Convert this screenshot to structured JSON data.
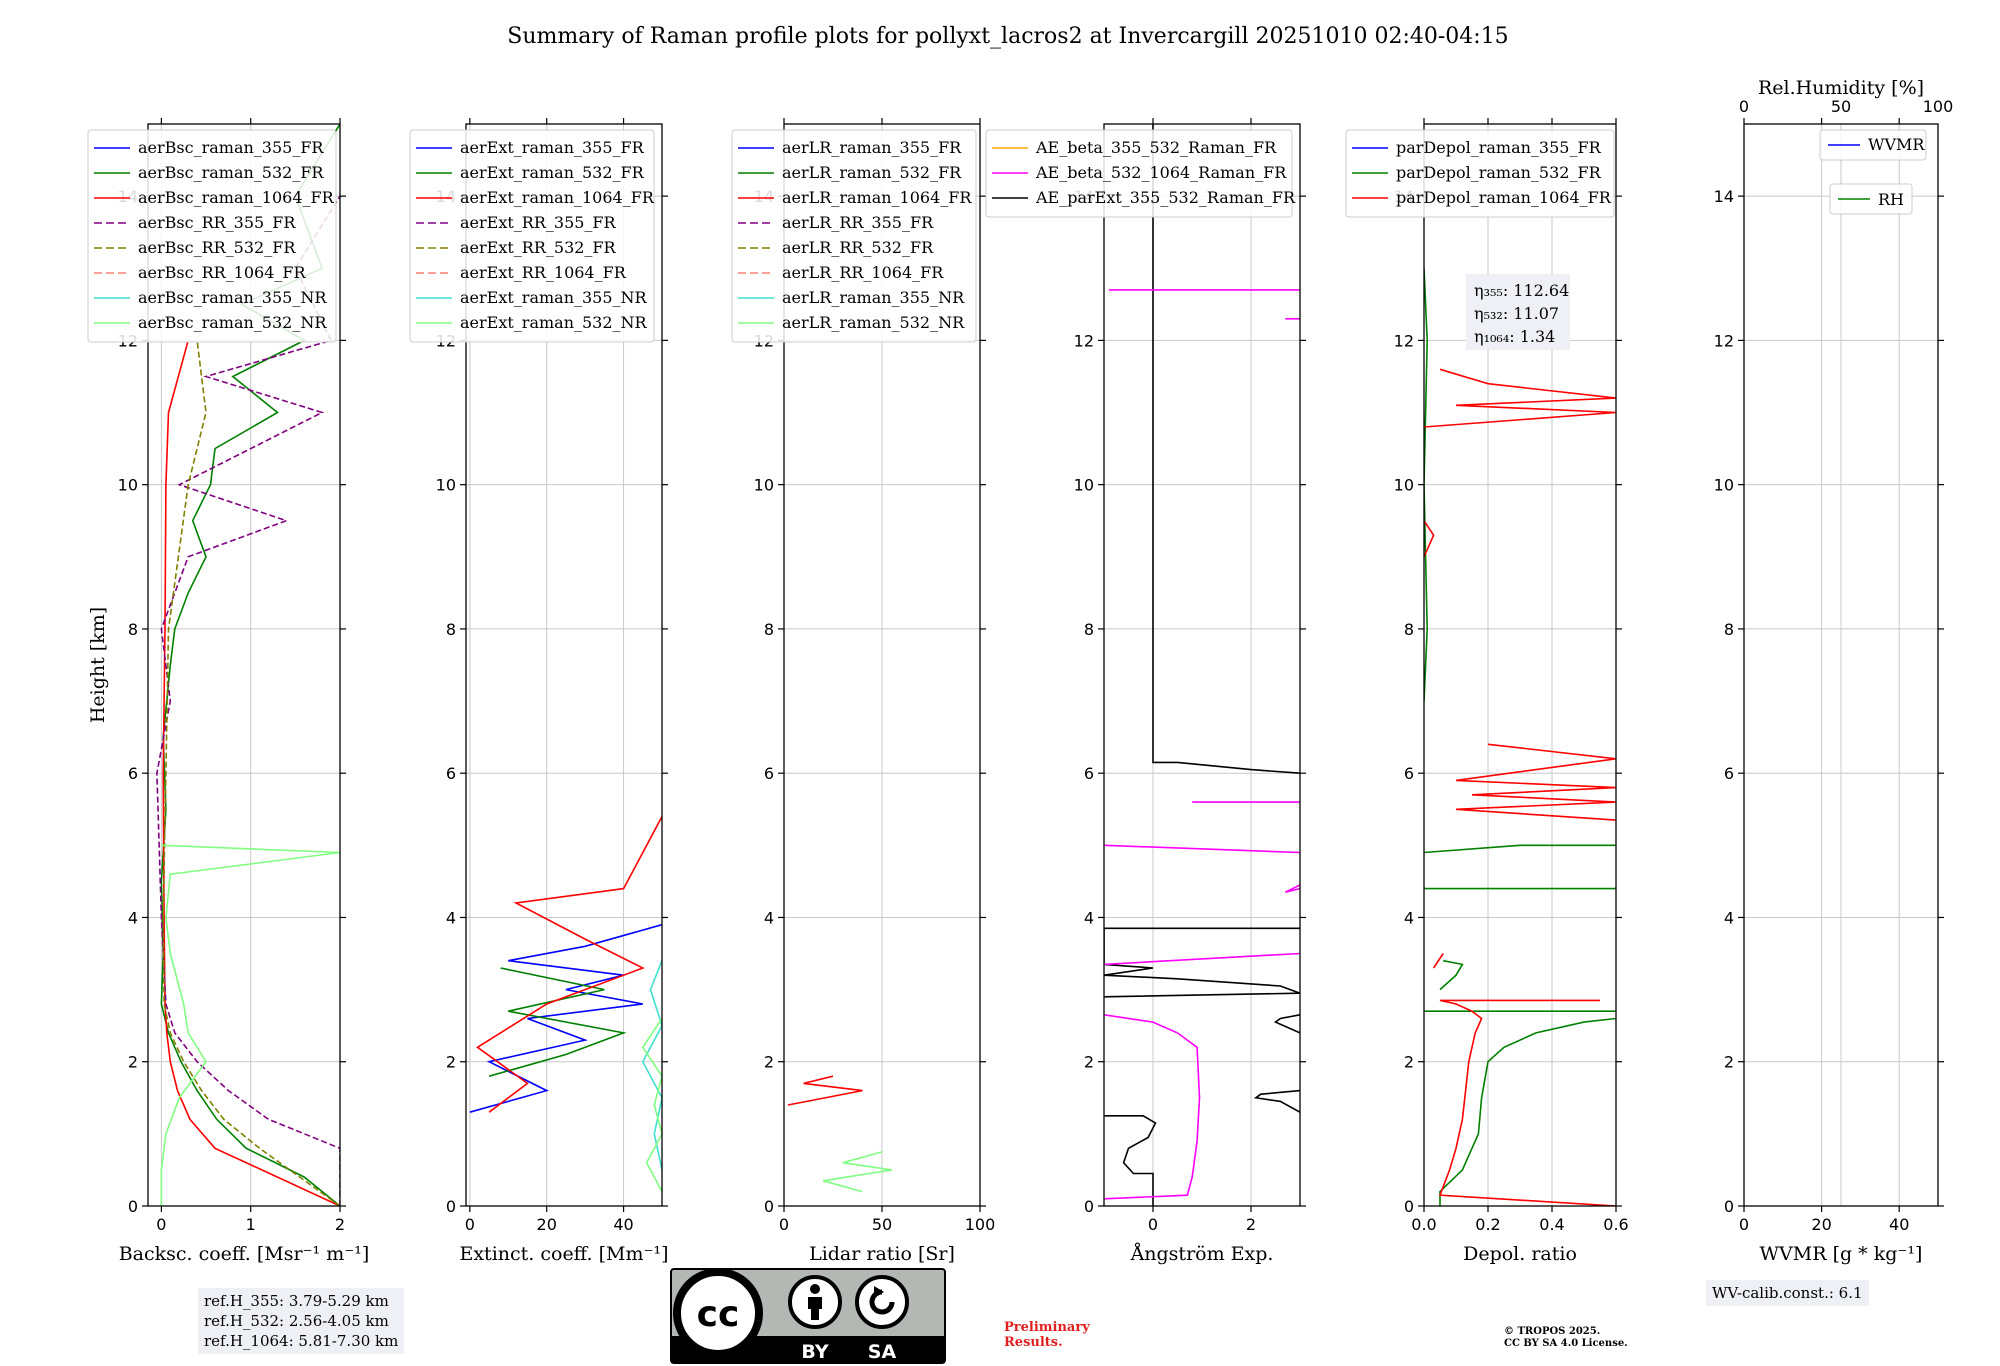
{
  "title": "Summary of Raman profile plots for pollyxt_lacros2 at Invercargill 20251010 02:40-04:15",
  "ylabel": "Height [km]",
  "chart_data": [
    {
      "type": "line",
      "name": "backscatter",
      "xlabel": "Backsc. coeff. [Msr⁻¹ m⁻¹]",
      "xlim": [
        -0.15,
        2
      ],
      "ylim": [
        0,
        15
      ],
      "xticks": [
        0,
        1,
        2
      ],
      "xtick_labels": [
        "0",
        "1",
        "2"
      ],
      "yticks": [
        0,
        2,
        4,
        6,
        8,
        10,
        12,
        14
      ],
      "legend": [
        "aerBsc_raman_355_FR",
        "aerBsc_raman_532_FR",
        "aerBsc_raman_1064_FR",
        "aerBsc_RR_355_FR",
        "aerBsc_RR_532_FR",
        "aerBsc_RR_1064_FR",
        "aerBsc_raman_355_NR",
        "aerBsc_raman_532_NR"
      ],
      "series": [
        {
          "name": "aerBsc_raman_532_FR",
          "color": "#008000",
          "style": "solid",
          "y": [
            0,
            0.4,
            0.8,
            1.2,
            1.6,
            2.0,
            2.4,
            2.8,
            3.5,
            4.5,
            5.5,
            6.5,
            7.5,
            8.0,
            8.5,
            9.0,
            9.5,
            10.0,
            10.5,
            11.0,
            11.5,
            12.0,
            12.5,
            13.0,
            14.0,
            15.0
          ],
          "x": [
            2.0,
            1.6,
            0.95,
            0.62,
            0.4,
            0.22,
            0.08,
            0.0,
            0.02,
            0.0,
            0.05,
            0.02,
            0.1,
            0.15,
            0.3,
            0.5,
            0.35,
            0.55,
            0.6,
            1.3,
            0.8,
            1.6,
            0.9,
            1.8,
            1.5,
            2.0
          ]
        },
        {
          "name": "aerBsc_raman_1064_FR",
          "color": "#ff0000",
          "style": "solid",
          "y": [
            0,
            0.4,
            0.8,
            1.2,
            1.6,
            2.0,
            2.4,
            2.8,
            4.0,
            6.0,
            8.0,
            10.0,
            11.0,
            12.0
          ],
          "x": [
            2.0,
            1.3,
            0.6,
            0.32,
            0.18,
            0.1,
            0.06,
            0.04,
            0.03,
            0.02,
            0.04,
            0.05,
            0.08,
            0.3
          ]
        },
        {
          "name": "aerBsc_RR_355_FR",
          "color": "#800080",
          "style": "dashed",
          "y": [
            0,
            0.8,
            1.2,
            1.6,
            2.0,
            2.4,
            2.8,
            4.0,
            6.0,
            7.0,
            8.0,
            9.0,
            9.5,
            10.0,
            11.0,
            11.5,
            12.0,
            13.0,
            14.0
          ],
          "x": [
            2.0,
            2.0,
            1.2,
            0.75,
            0.4,
            0.15,
            0.05,
            0.0,
            -0.05,
            0.1,
            0.0,
            0.3,
            1.4,
            0.2,
            1.8,
            0.5,
            1.9,
            1.5,
            2.0
          ]
        },
        {
          "name": "aerBsc_RR_532_FR",
          "color": "#808000",
          "style": "dashed",
          "y": [
            0,
            0.8,
            1.2,
            1.6,
            2.0,
            2.4,
            2.8,
            4.0,
            6.0,
            8.0,
            10.0,
            11.0,
            12.0
          ],
          "x": [
            2.0,
            1.1,
            0.7,
            0.45,
            0.25,
            0.1,
            0.03,
            0.02,
            0.05,
            0.08,
            0.3,
            0.5,
            0.4
          ]
        },
        {
          "name": "aerBsc_raman_532_NR",
          "color": "#80ff80",
          "style": "solid",
          "y": [
            0,
            0.5,
            1.0,
            1.5,
            2.0,
            2.4,
            2.8,
            3.5,
            4.0,
            4.6,
            4.9,
            5.0
          ],
          "x": [
            0.0,
            0.0,
            0.05,
            0.2,
            0.5,
            0.3,
            0.25,
            0.1,
            0.05,
            0.1,
            2.0,
            0.0
          ]
        }
      ]
    },
    {
      "type": "line",
      "name": "extinction",
      "xlabel": "Extinct. coeff. [Mm⁻¹]",
      "xlim": [
        -1,
        50
      ],
      "ylim": [
        0,
        15
      ],
      "xticks": [
        0,
        20,
        40
      ],
      "xtick_labels": [
        "0",
        "20",
        "40"
      ],
      "yticks": [
        0,
        2,
        4,
        6,
        8,
        10,
        12,
        14
      ],
      "legend": [
        "aerExt_raman_355_FR",
        "aerExt_raman_532_FR",
        "aerExt_raman_1064_FR",
        "aerExt_RR_355_FR",
        "aerExt_RR_532_FR",
        "aerExt_RR_1064_FR",
        "aerExt_raman_355_NR",
        "aerExt_raman_532_NR"
      ],
      "series": [
        {
          "name": "aerExt_raman_355_FR",
          "color": "#0000ff",
          "style": "solid",
          "y": [
            1.3,
            1.6,
            2.0,
            2.3,
            2.6,
            2.8,
            3.0,
            3.2,
            3.4,
            3.6,
            3.9
          ],
          "x": [
            0,
            20,
            5,
            30,
            15,
            45,
            25,
            40,
            10,
            30,
            50
          ]
        },
        {
          "name": "aerExt_raman_532_FR",
          "color": "#008000",
          "style": "solid",
          "y": [
            1.8,
            2.1,
            2.4,
            2.7,
            3.0,
            3.3
          ],
          "x": [
            5,
            25,
            40,
            10,
            35,
            8
          ]
        },
        {
          "name": "aerExt_raman_1064_FR",
          "color": "#ff0000",
          "style": "solid",
          "y": [
            1.3,
            1.7,
            2.2,
            2.8,
            3.3,
            3.7,
            4.2,
            4.4,
            5.4
          ],
          "x": [
            5,
            15,
            2,
            20,
            45,
            30,
            12,
            40,
            50
          ]
        },
        {
          "name": "aerExt_raman_355_NR",
          "color": "#40e0d0",
          "style": "solid",
          "y": [
            0.5,
            1.0,
            1.5,
            2.0,
            2.5,
            3.0,
            3.4
          ],
          "x": [
            50,
            48,
            50,
            45,
            50,
            47,
            50
          ]
        },
        {
          "name": "aerExt_raman_532_NR",
          "color": "#80ff80",
          "style": "solid",
          "y": [
            0.2,
            0.6,
            1.0,
            1.4,
            1.8,
            2.2,
            2.6
          ],
          "x": [
            50,
            46,
            50,
            48,
            50,
            45,
            50
          ]
        }
      ]
    },
    {
      "type": "line",
      "name": "lidar_ratio",
      "xlabel": "Lidar ratio [Sr]",
      "xlim": [
        0,
        100
      ],
      "ylim": [
        0,
        15
      ],
      "xticks": [
        0,
        50,
        100
      ],
      "xtick_labels": [
        "0",
        "50",
        "100"
      ],
      "yticks": [
        0,
        2,
        4,
        6,
        8,
        10,
        12,
        14
      ],
      "legend": [
        "aerLR_raman_355_FR",
        "aerLR_raman_532_FR",
        "aerLR_raman_1064_FR",
        "aerLR_RR_355_FR",
        "aerLR_RR_532_FR",
        "aerLR_RR_1064_FR",
        "aerLR_raman_355_NR",
        "aerLR_raman_532_NR"
      ],
      "series": [
        {
          "name": "aerLR_raman_1064_FR",
          "color": "#ff0000",
          "style": "solid",
          "y": [
            1.4,
            1.6,
            1.7,
            1.8
          ],
          "x": [
            2,
            40,
            10,
            25
          ]
        },
        {
          "name": "aerLR_raman_532_NR",
          "color": "#80ff80",
          "style": "solid",
          "y": [
            0.2,
            0.35,
            0.5,
            0.6,
            0.75
          ],
          "x": [
            40,
            20,
            55,
            30,
            50
          ]
        }
      ]
    },
    {
      "type": "line",
      "name": "angstrom",
      "xlabel": "Ångström Exp.",
      "xlim": [
        -1,
        3
      ],
      "ylim": [
        0,
        15
      ],
      "xticks": [
        0,
        2
      ],
      "xtick_labels": [
        "0",
        "2"
      ],
      "yticks": [
        0,
        2,
        4,
        6,
        8,
        10,
        12,
        14
      ],
      "legend": [
        "AE_beta_355_532_Raman_FR",
        "AE_beta_532_1064_Raman_FR",
        "AE_parExt_355_532_Raman_FR"
      ],
      "series": [
        {
          "name": "AE_parExt_355_532_Raman_FR",
          "color": "#000000",
          "style": "solid",
          "y": [
            0,
            0.45,
            0.45,
            0.6,
            0.8,
            0.95,
            1.15,
            1.25,
            1.25
          ],
          "x": [
            0,
            0,
            -0.4,
            -0.6,
            -0.5,
            -0.1,
            0.05,
            -0.2,
            -1
          ]
        },
        {
          "name": "AE_parExt_355_532_Raman_FR",
          "color": "#000000",
          "style": "solid",
          "y": [
            1.3,
            1.45,
            1.5,
            1.55,
            1.6
          ],
          "x": [
            3,
            2.6,
            2.1,
            2.2,
            3
          ]
        },
        {
          "name": "AE_parExt_355_532_Raman_FR",
          "color": "#000000",
          "style": "solid",
          "y": [
            2.4,
            2.55,
            2.6,
            2.65
          ],
          "x": [
            3,
            2.5,
            2.6,
            3
          ]
        },
        {
          "name": "AE_parExt_355_532_Raman_FR",
          "color": "#000000",
          "style": "solid",
          "y": [
            2.9,
            2.95,
            3.05,
            3.15,
            3.2,
            3.3,
            3.35,
            3.85,
            3.85
          ],
          "x": [
            -1,
            3,
            2.6,
            0.5,
            -1,
            0,
            -1,
            -1,
            3
          ]
        },
        {
          "name": "AE_parExt_355_532_Raman_FR",
          "color": "#000000",
          "style": "solid",
          "y": [
            6.0,
            6.05,
            6.15,
            6.15,
            15.0
          ],
          "x": [
            3,
            2,
            0.5,
            0,
            0
          ]
        },
        {
          "name": "AE_beta_532_1064_Raman_FR",
          "color": "#ff00ff",
          "style": "solid",
          "y": [
            0.1,
            0.15,
            0.15,
            0.4,
            0.9,
            1.5,
            2.2,
            2.4,
            2.55,
            2.65
          ],
          "x": [
            -1,
            0.7,
            0.7,
            0.8,
            0.9,
            0.95,
            0.9,
            0.5,
            0,
            -1
          ]
        },
        {
          "name": "AE_beta_532_1064_Raman_FR",
          "color": "#ff00ff",
          "style": "solid",
          "y": [
            3.35,
            3.5
          ],
          "x": [
            -1,
            3
          ]
        },
        {
          "name": "AE_beta_532_1064_Raman_FR",
          "color": "#ff00ff",
          "style": "solid",
          "y": [
            4.4,
            4.35,
            4.45
          ],
          "x": [
            3,
            2.7,
            3
          ]
        },
        {
          "name": "AE_beta_532_1064_Raman_FR",
          "color": "#ff00ff",
          "style": "solid",
          "y": [
            4.9,
            5.0
          ],
          "x": [
            3,
            -1
          ]
        },
        {
          "name": "AE_beta_532_1064_Raman_FR",
          "color": "#ff00ff",
          "style": "solid",
          "y": [
            5.6,
            5.6
          ],
          "x": [
            0.8,
            3
          ]
        },
        {
          "name": "AE_beta_532_1064_Raman_FR",
          "color": "#ff00ff",
          "style": "solid",
          "y": [
            12.3,
            12.3
          ],
          "x": [
            2.7,
            3
          ]
        },
        {
          "name": "AE_beta_532_1064_Raman_FR",
          "color": "#ff00ff",
          "style": "solid",
          "y": [
            12.7,
            12.7
          ],
          "x": [
            -0.9,
            3
          ]
        }
      ]
    },
    {
      "type": "line",
      "name": "depol",
      "xlabel": "Depol. ratio",
      "xlim": [
        0,
        0.6
      ],
      "ylim": [
        0,
        15
      ],
      "xticks": [
        0.0,
        0.2,
        0.4,
        0.6
      ],
      "xtick_labels": [
        "0.0",
        "0.2",
        "0.4",
        "0.6"
      ],
      "yticks": [
        0,
        2,
        4,
        6,
        8,
        10,
        12,
        14
      ],
      "legend": [
        "parDepol_raman_355_FR",
        "parDepol_raman_532_FR",
        "parDepol_raman_1064_FR"
      ],
      "annotation": [
        "η₃₅₅: 112.64",
        "η₅₃₂: 11.07",
        "η₁₀₆₄: 1.34"
      ],
      "series": [
        {
          "name": "parDepol_raman_532_FR",
          "color": "#008000",
          "style": "solid",
          "y": [
            0,
            0.2,
            0.5,
            1.0,
            1.5,
            2.0,
            2.2,
            2.4,
            2.55,
            2.6
          ],
          "x": [
            0.05,
            0.05,
            0.12,
            0.17,
            0.18,
            0.2,
            0.25,
            0.35,
            0.5,
            0.6
          ]
        },
        {
          "name": "parDepol_raman_532_FR",
          "color": "#008000",
          "style": "solid",
          "y": [
            2.7,
            2.7
          ],
          "x": [
            0,
            0.6
          ]
        },
        {
          "name": "parDepol_raman_532_FR",
          "color": "#008000",
          "style": "solid",
          "y": [
            3.0,
            3.2,
            3.35,
            3.4
          ],
          "x": [
            0.05,
            0.1,
            0.12,
            0.06
          ]
        },
        {
          "name": "parDepol_raman_532_FR",
          "color": "#008000",
          "style": "solid",
          "y": [
            4.4,
            4.4
          ],
          "x": [
            0,
            0.6
          ]
        },
        {
          "name": "parDepol_raman_532_FR",
          "color": "#008000",
          "style": "solid",
          "y": [
            4.9,
            5.0,
            5.0
          ],
          "x": [
            0,
            0.3,
            0.6
          ]
        },
        {
          "name": "parDepol_raman_532_FR",
          "color": "#008000",
          "style": "solid",
          "y": [
            7.0,
            8.0,
            10.0,
            12.0,
            13.0
          ],
          "x": [
            0.0,
            0.01,
            0.0,
            0.01,
            0.0
          ]
        },
        {
          "name": "parDepol_raman_1064_FR",
          "color": "#ff0000",
          "style": "solid",
          "y": [
            0,
            0.15,
            0.5,
            0.8,
            1.2,
            1.6,
            2.0,
            2.4,
            2.6,
            2.7,
            2.8,
            2.85,
            2.85
          ],
          "x": [
            0.6,
            0.05,
            0.08,
            0.1,
            0.12,
            0.13,
            0.14,
            0.16,
            0.18,
            0.15,
            0.1,
            0.05,
            0.55
          ]
        },
        {
          "name": "parDepol_raman_1064_FR",
          "color": "#ff0000",
          "style": "solid",
          "y": [
            3.3,
            3.5
          ],
          "x": [
            0.03,
            0.06
          ]
        },
        {
          "name": "parDepol_raman_1064_FR",
          "color": "#ff0000",
          "style": "solid",
          "y": [
            5.35,
            5.5,
            5.6,
            5.7,
            5.8,
            5.9,
            6.2,
            6.4
          ],
          "x": [
            0.6,
            0.1,
            0.6,
            0.15,
            0.6,
            0.1,
            0.6,
            0.2
          ]
        },
        {
          "name": "parDepol_raman_1064_FR",
          "color": "#ff0000",
          "style": "solid",
          "y": [
            9.0,
            9.3,
            9.5
          ],
          "x": [
            0.0,
            0.03,
            0.0
          ]
        },
        {
          "name": "parDepol_raman_1064_FR",
          "color": "#ff0000",
          "style": "solid",
          "y": [
            10.8,
            11.0,
            11.1,
            11.2,
            11.4,
            11.6
          ],
          "x": [
            0.0,
            0.6,
            0.1,
            0.6,
            0.2,
            0.05
          ]
        }
      ]
    },
    {
      "type": "line",
      "name": "wvmr",
      "xlabel": "WVMR [g * kg⁻¹]",
      "x2label": "Rel.Humidity [%]",
      "xlim": [
        0,
        50
      ],
      "x2lim": [
        0,
        100
      ],
      "ylim": [
        0,
        15
      ],
      "xticks": [
        0,
        20,
        40
      ],
      "xtick_labels": [
        "0",
        "20",
        "40"
      ],
      "x2ticks": [
        0,
        50,
        100
      ],
      "x2tick_labels": [
        "0",
        "50",
        "100"
      ],
      "yticks": [
        0,
        2,
        4,
        6,
        8,
        10,
        12,
        14
      ],
      "legend": [
        "WVMR",
        "RH"
      ],
      "series": []
    }
  ],
  "ref_heights": [
    "ref.H_355: 3.79-5.29 km",
    "ref.H_532: 2.56-4.05 km",
    "ref.H_1064: 5.81-7.30 km"
  ],
  "cc_badge": {
    "by": "BY",
    "sa": "SA"
  },
  "preliminary": [
    "Preliminary",
    "Results."
  ],
  "copyright": [
    "© TROPOS 2025.",
    "CC BY SA 4.0 License."
  ],
  "wv_calib": "WV-calib.const.: 6.1"
}
